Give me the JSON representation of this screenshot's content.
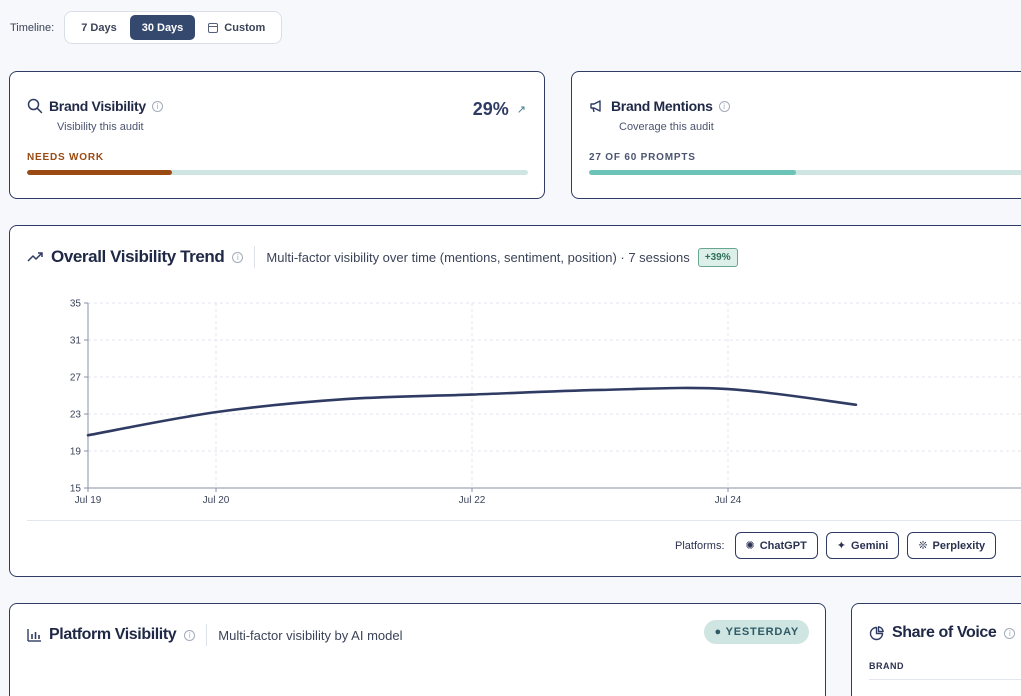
{
  "timeline": {
    "label": "Timeline:",
    "options": [
      "7 Days",
      "30 Days",
      "Custom"
    ],
    "selected": "30 Days"
  },
  "brand_visibility": {
    "title": "Brand Visibility",
    "subtitle": "Visibility this audit",
    "value": "29%",
    "status": "NEEDS WORK",
    "progress": 0.29,
    "status_color": "#9a4a12",
    "icon": "search-icon"
  },
  "brand_mentions": {
    "title": "Brand Mentions",
    "subtitle": "Coverage this audit",
    "status": "27 OF 60 PROMPTS",
    "progress": 0.45,
    "status_color": "#4b5470",
    "fill_color": "#6cc3b7",
    "icon": "megaphone-icon"
  },
  "trend": {
    "title": "Overall Visibility Trend",
    "description": "Multi-factor visibility over time (mentions, sentiment, position) · 7 sessions",
    "badge": "+39%",
    "platforms_label": "Platforms:",
    "platforms": [
      {
        "label": "ChatGPT",
        "icon": "chatgpt-icon"
      },
      {
        "label": "Gemini",
        "icon": "gemini-icon"
      },
      {
        "label": "Perplexity",
        "icon": "perplexity-icon"
      }
    ]
  },
  "chart_data": {
    "type": "line",
    "x": [
      "Jul 19",
      "Jul 20",
      "Jul 21",
      "Jul 22",
      "Jul 23",
      "Jul 24",
      "Jul 25"
    ],
    "x_tick_labels": [
      "Jul 19",
      "Jul 20",
      "Jul 22",
      "Jul 24"
    ],
    "series": [
      {
        "values": [
          20.7,
          23.2,
          24.6,
          25.1,
          25.6,
          25.7,
          24.0
        ]
      }
    ],
    "ylim": [
      15,
      35
    ],
    "y_ticks": [
      15,
      19,
      23,
      27,
      31,
      35
    ],
    "grid": true,
    "line_color": "#2f3b63"
  },
  "platform_visibility": {
    "title": "Platform Visibility",
    "description": "Multi-factor visibility by AI model",
    "badge": "YESTERDAY"
  },
  "share_of_voice": {
    "title": "Share of Voice",
    "column": "BRAND"
  }
}
